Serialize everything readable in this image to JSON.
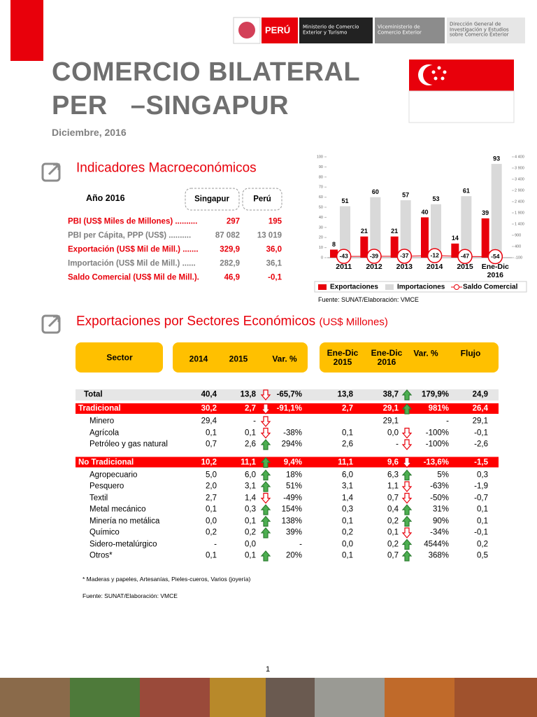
{
  "header": {
    "logo_text": "PERÚ",
    "ministry": "Ministerio de Comercio Exterior y Turismo",
    "vice": "Viceministerio de Comercio Exterior",
    "direction": "Dirección General de Investigación y Estudios sobre Comercio Exterior",
    "title_line1": "COMERCIO BILATERAL",
    "title_line2": "PER   –SINGAPUR",
    "date": "Diciembre, 2016"
  },
  "macro": {
    "title": "Indicadores Macroeconómicos",
    "year": "Año 2016",
    "columns": [
      "Singapur",
      "Perú"
    ],
    "rows": [
      [
        "PBI (US$ Miles de Millones) ..........",
        "297",
        "195"
      ],
      [
        "PBI per Cápita, PPP (US$) ..........",
        "87 082",
        "13 019"
      ],
      [
        "Exportación (US$ Mil de Mill.) .......",
        "329,9",
        "36,0"
      ],
      [
        "Importación (US$ Mil de Mill.) ......",
        "282,9",
        "36,1"
      ],
      [
        "Saldo Comercial (US$ Mil de Mill.).",
        "46,9",
        "-0,1"
      ]
    ]
  },
  "chart_data": {
    "type": "bar",
    "categories": [
      "2011",
      "2012",
      "2013",
      "2014",
      "2015",
      "Ene-Dic 2016"
    ],
    "series": [
      {
        "name": "Exportaciones",
        "color": "#e8000b",
        "values": [
          8,
          21,
          21,
          40,
          14,
          39
        ]
      },
      {
        "name": "Importaciones",
        "color": "#d9d9d9",
        "values": [
          51,
          60,
          57,
          53,
          61,
          93
        ]
      },
      {
        "name": "Saldo Comercial",
        "type": "line",
        "axis": "y2",
        "color": "#e8000b",
        "values": [
          -43,
          -39,
          -37,
          -12,
          -47,
          -54
        ]
      }
    ],
    "ylim": [
      0,
      100
    ],
    "yticks": [
      0,
      10,
      20,
      30,
      40,
      50,
      60,
      70,
      80,
      90,
      100
    ],
    "y2lim": [
      -100,
      4400
    ],
    "y2ticks": [
      -100,
      400,
      900,
      {
        "value": 1400,
        "label": "1 400"
      },
      {
        "value": 1900,
        "label": "1 900"
      },
      {
        "value": 2400,
        "label": "2 400"
      },
      {
        "value": 2900,
        "label": "2 900"
      },
      {
        "value": 3400,
        "label": "3 400"
      },
      {
        "value": 3900,
        "label": "3 900"
      },
      {
        "value": 4400,
        "label": "4 400"
      }
    ],
    "legend": "bottom",
    "source": "Fuente: SUNAT/Elaboración: VMCE"
  },
  "sectors": {
    "title": "Exportaciones por Sectores Económicos",
    "unit": "(US$ Millones)",
    "headers": [
      "Sector",
      "2014",
      "2015",
      "Var. %",
      "Ene-Dic 2015",
      "Ene-Dic 2016",
      "Var. %",
      "Flujo"
    ],
    "total": {
      "cells": [
        "Total",
        "40,4",
        "13,8",
        "-65,7%",
        "13,8",
        "38,7",
        "179,9%",
        "24,9"
      ],
      "arrows": [
        "down",
        "up"
      ]
    },
    "groups": [
      {
        "row": {
          "cells": [
            "Tradicional",
            "30,2",
            "2,7",
            "-91,1%",
            "2,7",
            "29,1",
            "981%",
            "26,4"
          ],
          "arrows": [
            "down",
            "up"
          ]
        },
        "items": [
          {
            "cells": [
              "Minero",
              "29,4",
              "-",
              null,
              null,
              "29,1",
              "-",
              "29,1"
            ],
            "arrows": [
              "down",
              null
            ]
          },
          {
            "cells": [
              "Agrícola",
              "0,1",
              "0,1",
              "-38%",
              "0,1",
              "0,0",
              "-100%",
              "-0,1"
            ],
            "arrows": [
              "down",
              "down"
            ]
          },
          {
            "cells": [
              "Petróleo y gas natural",
              "0,7",
              "2,6",
              "294%",
              "2,6",
              "-",
              "-100%",
              "-2,6"
            ],
            "arrows": [
              "up",
              "down"
            ]
          }
        ]
      },
      {
        "row": {
          "cells": [
            "No Tradicional",
            "10,2",
            "11,1",
            "9,4%",
            "11,1",
            "9,6",
            "-13,6%",
            "-1,5"
          ],
          "arrows": [
            "up",
            "down"
          ]
        },
        "items": [
          {
            "cells": [
              "Agropecuario",
              "5,0",
              "6,0",
              "18%",
              "6,0",
              "6,3",
              "5%",
              "0,3"
            ],
            "arrows": [
              "up",
              "up"
            ]
          },
          {
            "cells": [
              "Pesquero",
              "2,0",
              "3,1",
              "51%",
              "3,1",
              "1,1",
              "-63%",
              "-1,9"
            ],
            "arrows": [
              "up",
              "down"
            ]
          },
          {
            "cells": [
              "Textil",
              "2,7",
              "1,4",
              "-49%",
              "1,4",
              "0,7",
              "-50%",
              "-0,7"
            ],
            "arrows": [
              "down",
              "down"
            ]
          },
          {
            "cells": [
              "Metal mecánico",
              "0,1",
              "0,3",
              "154%",
              "0,3",
              "0,4",
              "31%",
              "0,1"
            ],
            "arrows": [
              "up",
              "up"
            ]
          },
          {
            "cells": [
              "Minería no metálica",
              "0,0",
              "0,1",
              "138%",
              "0,1",
              "0,2",
              "90%",
              "0,1"
            ],
            "arrows": [
              "up",
              "up"
            ]
          },
          {
            "cells": [
              "Químico",
              "0,2",
              "0,2",
              "39%",
              "0,2",
              "0,1",
              "-34%",
              "-0,1"
            ],
            "arrows": [
              "up",
              "down"
            ]
          },
          {
            "cells": [
              "Sidero-metalúrgico",
              "-",
              "0,0",
              "-",
              "0,0",
              "0,2",
              "4544%",
              "0,2"
            ],
            "arrows": [
              null,
              "up"
            ]
          },
          {
            "cells": [
              "Otros*",
              "0,1",
              "0,1",
              "20%",
              "0,1",
              "0,7",
              "368%",
              "0,5"
            ],
            "arrows": [
              "up",
              "up"
            ]
          }
        ]
      }
    ],
    "note": "* Maderas y papeles, Artesanías, Pieles-cueros, Varios (joyería)",
    "source": "Fuente: SUNAT/Elaboración: VMCE"
  },
  "page_number": "1"
}
